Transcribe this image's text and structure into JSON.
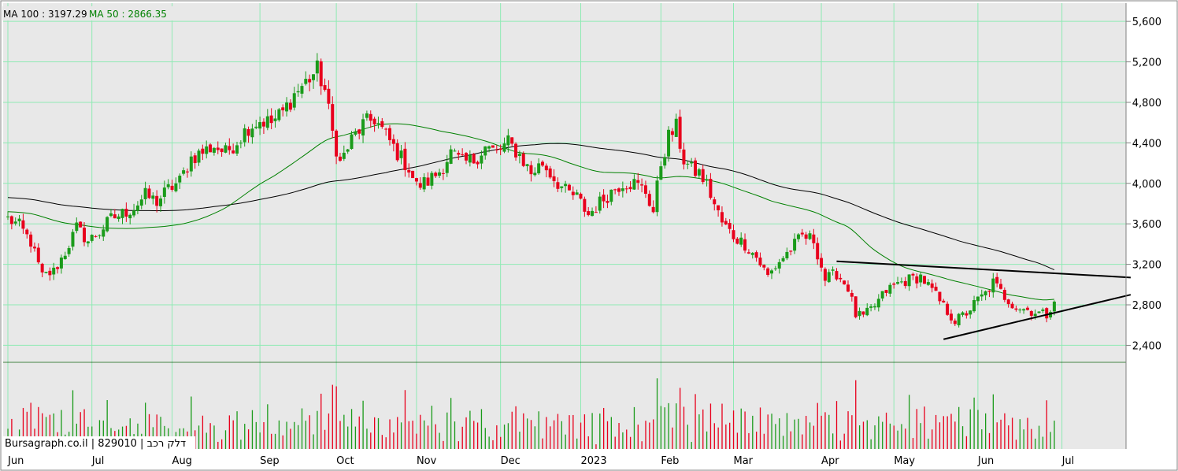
{
  "chart_data": {
    "type": "candlestick",
    "legend": [
      {
        "label": "MA 100 : 3197.29",
        "color": "#000000"
      },
      {
        "label": "MA 50 : 2866.35",
        "color": "#008000"
      }
    ],
    "watermark": "Bursagraph.co.il | 829010 | דלק רכב",
    "y_ticks": [
      "5,600",
      "5,200",
      "4,800",
      "4,400",
      "4,000",
      "3,600",
      "3,200",
      "2,800",
      "2,400"
    ],
    "y_tick_values": [
      5600,
      5200,
      4800,
      4400,
      4000,
      3600,
      3200,
      2800,
      2400
    ],
    "ylim": [
      2240,
      5780
    ],
    "x_ticks": [
      "Jun",
      "Jul",
      "Aug",
      "Sep",
      "Oct",
      "Nov",
      "Dec",
      "2023",
      "Feb",
      "Mar",
      "Apr",
      "May",
      "Jun",
      "Jul"
    ],
    "x_tick_positions": [
      0,
      22,
      43,
      66,
      86,
      107,
      129,
      150,
      171,
      190,
      213,
      232,
      254,
      276
    ],
    "n_sessions": 287,
    "closes": [
      [
        0,
        3650
      ],
      [
        3,
        3580
      ],
      [
        6,
        3420
      ],
      [
        9,
        3080
      ],
      [
        12,
        3130
      ],
      [
        15,
        3320
      ],
      [
        18,
        3560
      ],
      [
        21,
        3430
      ],
      [
        24,
        3520
      ],
      [
        27,
        3650
      ],
      [
        30,
        3700
      ],
      [
        33,
        3760
      ],
      [
        36,
        3880
      ],
      [
        39,
        3820
      ],
      [
        42,
        3940
      ],
      [
        45,
        4020
      ],
      [
        48,
        4250
      ],
      [
        51,
        4310
      ],
      [
        54,
        4370
      ],
      [
        57,
        4300
      ],
      [
        60,
        4420
      ],
      [
        63,
        4560
      ],
      [
        66,
        4620
      ],
      [
        69,
        4600
      ],
      [
        72,
        4700
      ],
      [
        75,
        4880
      ],
      [
        78,
        5000
      ],
      [
        81,
        5120
      ],
      [
        83,
        4920
      ],
      [
        85,
        4500
      ],
      [
        87,
        4200
      ],
      [
        90,
        4430
      ],
      [
        93,
        4580
      ],
      [
        96,
        4640
      ],
      [
        99,
        4470
      ],
      [
        102,
        4300
      ],
      [
        105,
        4150
      ],
      [
        107,
        3970
      ],
      [
        110,
        4020
      ],
      [
        113,
        4120
      ],
      [
        116,
        4300
      ],
      [
        119,
        4200
      ],
      [
        122,
        4230
      ],
      [
        125,
        4360
      ],
      [
        128,
        4300
      ],
      [
        131,
        4400
      ],
      [
        134,
        4280
      ],
      [
        137,
        4100
      ],
      [
        140,
        4200
      ],
      [
        143,
        4050
      ],
      [
        146,
        3920
      ],
      [
        149,
        3860
      ],
      [
        152,
        3690
      ],
      [
        155,
        3810
      ],
      [
        158,
        3920
      ],
      [
        161,
        4010
      ],
      [
        164,
        4000
      ],
      [
        167,
        3920
      ],
      [
        169,
        3720
      ],
      [
        171,
        4200
      ],
      [
        173,
        4460
      ],
      [
        175,
        4550
      ],
      [
        177,
        4230
      ],
      [
        179,
        4130
      ],
      [
        181,
        4100
      ],
      [
        183,
        3990
      ],
      [
        185,
        3790
      ],
      [
        187,
        3610
      ],
      [
        190,
        3480
      ],
      [
        193,
        3400
      ],
      [
        196,
        3270
      ],
      [
        199,
        3080
      ],
      [
        202,
        3230
      ],
      [
        205,
        3350
      ],
      [
        208,
        3480
      ],
      [
        211,
        3440
      ],
      [
        214,
        3050
      ],
      [
        217,
        3110
      ],
      [
        220,
        2970
      ],
      [
        222,
        2700
      ],
      [
        224,
        2680
      ],
      [
        227,
        2790
      ],
      [
        230,
        2940
      ],
      [
        233,
        3010
      ],
      [
        236,
        3050
      ],
      [
        239,
        3080
      ],
      [
        242,
        2940
      ],
      [
        245,
        2780
      ],
      [
        248,
        2640
      ],
      [
        251,
        2720
      ],
      [
        254,
        2850
      ],
      [
        256,
        2910
      ],
      [
        258,
        3020
      ],
      [
        261,
        2880
      ],
      [
        264,
        2780
      ],
      [
        267,
        2750
      ],
      [
        270,
        2720
      ],
      [
        272,
        2700
      ],
      [
        274,
        2860
      ]
    ],
    "annotations": [
      {
        "type": "trendline",
        "from": [
          217,
          3230
        ],
        "to": [
          294,
          3070
        ]
      },
      {
        "type": "trendline",
        "from": [
          245,
          2460
        ],
        "to": [
          294,
          2900
        ]
      }
    ]
  }
}
